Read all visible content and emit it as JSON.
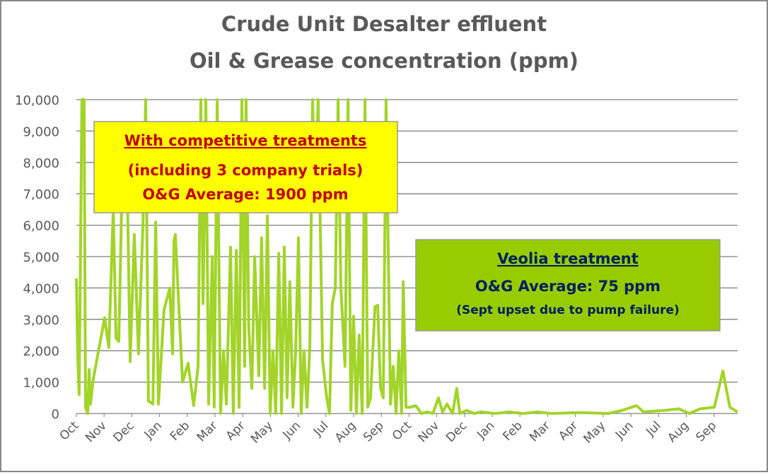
{
  "chart_data": {
    "type": "line",
    "title": [
      "Crude Unit Desalter effluent",
      "Oil & Grease concentration (ppm)"
    ],
    "xlim": [
      0,
      23.85
    ],
    "xticks": [
      {
        "value": 0,
        "label": "Oct"
      },
      {
        "value": 1,
        "label": "Nov"
      },
      {
        "value": 2,
        "label": "Dec"
      },
      {
        "value": 3,
        "label": "Jan"
      },
      {
        "value": 4,
        "label": "Feb"
      },
      {
        "value": 5,
        "label": "Mar"
      },
      {
        "value": 6,
        "label": "Apr"
      },
      {
        "value": 7,
        "label": "May"
      },
      {
        "value": 8,
        "label": "Jun"
      },
      {
        "value": 9,
        "label": "Jul"
      },
      {
        "value": 10,
        "label": "Aug"
      },
      {
        "value": 11,
        "label": "Sep"
      },
      {
        "value": 12,
        "label": "Oct"
      },
      {
        "value": 13,
        "label": "Nov"
      },
      {
        "value": 14,
        "label": "Dec"
      },
      {
        "value": 15,
        "label": "Jan"
      },
      {
        "value": 16,
        "label": "Feb"
      },
      {
        "value": 17,
        "label": "Mar"
      },
      {
        "value": 18,
        "label": "Apr"
      },
      {
        "value": 19,
        "label": "May"
      },
      {
        "value": 20,
        "label": "Jun"
      },
      {
        "value": 21,
        "label": "Jul"
      },
      {
        "value": 22,
        "label": "Aug"
      },
      {
        "value": 23,
        "label": "Sep"
      }
    ],
    "ylim": [
      0,
      10000
    ],
    "yticks": [
      0,
      {
        "value": 1000,
        "label": "1,000"
      },
      {
        "value": 2000,
        "label": "2,000"
      },
      {
        "value": 3000,
        "label": "3,000"
      },
      {
        "value": 4000,
        "label": "4,000"
      },
      {
        "value": 5000,
        "label": "5,000"
      },
      {
        "value": 6000,
        "label": "6,000"
      },
      {
        "value": 7000,
        "label": "7,000"
      },
      {
        "value": 8000,
        "label": "8,000"
      },
      {
        "value": 9000,
        "label": "9,000"
      },
      {
        "value": 10000,
        "label": "10,000"
      }
    ],
    "grid": true,
    "x": [
      0,
      0.05,
      0.1,
      0.2,
      0.28,
      0.33,
      0.41,
      0.46,
      0.51,
      0.61,
      1.02,
      1.17,
      1.33,
      1.43,
      1.53,
      1.63,
      1.84,
      1.94,
      2.09,
      2.24,
      2.4,
      2.5,
      2.6,
      2.76,
      2.86,
      2.96,
      3.16,
      3.37,
      3.47,
      3.52,
      3.57,
      3.83,
      4.03,
      4.23,
      4.39,
      4.49,
      4.57,
      4.67,
      4.77,
      4.9,
      4.97,
      5.08,
      5.2,
      5.31,
      5.41,
      5.56,
      5.66,
      5.77,
      5.87,
      5.97,
      6.07,
      6.12,
      6.22,
      6.33,
      6.43,
      6.58,
      6.68,
      6.79,
      6.89,
      6.99,
      7.09,
      7.19,
      7.3,
      7.4,
      7.5,
      7.6,
      7.7,
      7.81,
      7.91,
      8.01,
      8.11,
      8.21,
      8.32,
      8.42,
      8.52,
      8.62,
      8.72,
      8.88,
      9.03,
      9.13,
      9.23,
      9.34,
      9.44,
      9.54,
      9.69,
      9.8,
      9.9,
      10.0,
      10.1,
      10.2,
      10.31,
      10.41,
      10.51,
      10.61,
      10.77,
      10.87,
      10.97,
      11.07,
      11.17,
      11.33,
      11.43,
      11.53,
      11.63,
      11.73,
      11.79,
      11.89,
      12.04,
      12.24,
      12.45,
      12.65,
      12.86,
      13.06,
      13.21,
      13.37,
      13.57,
      13.72,
      13.83,
      14.08,
      14.34,
      14.59,
      15.1,
      15.61,
      16.12,
      16.63,
      17.14,
      18.16,
      19.18,
      19.69,
      20.2,
      20.46,
      21.22,
      21.73,
      22.12,
      22.5,
      23.01,
      23.32,
      23.57,
      23.85
    ],
    "series": [
      {
        "color": "#a2d42a",
        "values": [
          4300,
          1800,
          600,
          10000,
          10000,
          200,
          0,
          1400,
          300,
          1100,
          3050,
          2100,
          6500,
          2400,
          2300,
          6500,
          7000,
          1650,
          5700,
          1900,
          6000,
          10000,
          400,
          300,
          6100,
          300,
          3300,
          4000,
          1900,
          5500,
          5700,
          1000,
          1600,
          250,
          1500,
          10000,
          3500,
          10000,
          300,
          5000,
          200,
          10000,
          0,
          2000,
          300,
          5300,
          0,
          5200,
          200,
          10000,
          1500,
          10000,
          2700,
          800,
          5000,
          1200,
          5600,
          800,
          6300,
          0,
          2000,
          0,
          5100,
          0,
          5300,
          500,
          4200,
          200,
          2000,
          5600,
          0,
          2000,
          200,
          2100,
          10000,
          6500,
          10000,
          1700,
          500,
          0,
          3500,
          4000,
          10000,
          4000,
          1500,
          10000,
          100,
          3100,
          0,
          2500,
          0,
          10000,
          200,
          500,
          3400,
          3450,
          800,
          500,
          10000,
          300,
          1500,
          0,
          2000,
          0,
          4200,
          200,
          200,
          250,
          0,
          50,
          0,
          500,
          50,
          300,
          0,
          800,
          0,
          100,
          0,
          50,
          0,
          50,
          0,
          50,
          0,
          30,
          0,
          100,
          250,
          50,
          100,
          150,
          0,
          150,
          200,
          1350,
          200,
          50
        ]
      }
    ],
    "annotations": [
      [
        "With competitive treatments",
        "(including 3 company trials)",
        "O&G Average: 1900 ppm"
      ],
      [
        "Veolia treatment",
        "O&G Average: 75 ppm",
        "(Sept upset due to pump failure)"
      ]
    ]
  }
}
